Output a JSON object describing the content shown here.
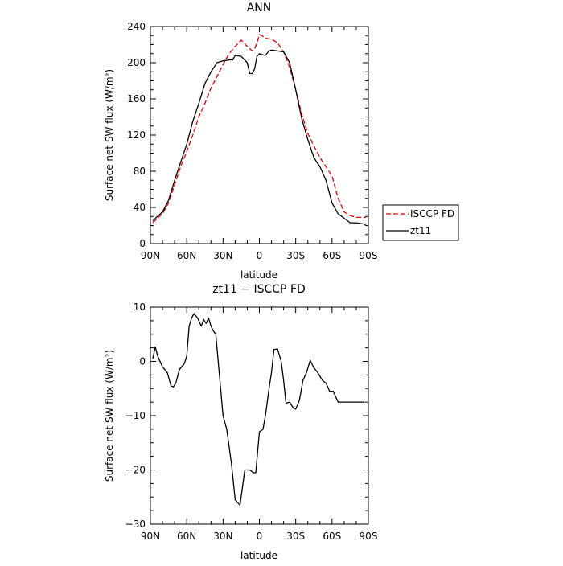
{
  "chart_data": [
    {
      "type": "line",
      "title": "ANN",
      "xlabel": "latitude",
      "ylabel": "Surface net SW flux (W/m²)",
      "xlim": [
        90,
        -90
      ],
      "ylim": [
        0,
        240
      ],
      "x_ticks": [
        90,
        60,
        30,
        0,
        -30,
        -60,
        -90
      ],
      "x_tick_labels": [
        "90N",
        "60N",
        "30N",
        "0",
        "30S",
        "60S",
        "90S"
      ],
      "y_ticks": [
        0,
        40,
        80,
        120,
        160,
        200,
        240
      ],
      "y_tick_labels": [
        "0",
        "40",
        "80",
        "120",
        "160",
        "200",
        "240"
      ],
      "legend_position": "right",
      "series": [
        {
          "name": "ISCCP FD",
          "color": "#e00000",
          "dash": "dashed",
          "x": [
            88,
            85,
            80,
            75,
            70,
            65,
            60,
            55,
            50,
            45,
            40,
            35,
            30,
            25,
            20,
            15,
            10,
            6,
            4,
            2,
            0,
            -2,
            -5,
            -10,
            -15,
            -20,
            -25,
            -30,
            -35,
            -40,
            -45,
            -50,
            -55,
            -60,
            -65,
            -70,
            -75,
            -80,
            -85,
            -88
          ],
          "y": [
            23,
            27,
            33,
            45,
            65,
            85,
            102,
            120,
            140,
            155,
            172,
            185,
            198,
            210,
            218,
            225,
            218,
            213,
            215,
            222,
            231,
            230,
            227,
            226,
            222,
            212,
            195,
            170,
            143,
            122,
            108,
            95,
            85,
            75,
            50,
            35,
            31,
            29,
            29,
            29
          ]
        },
        {
          "name": "zt11",
          "color": "#000000",
          "dash": "solid",
          "x": [
            88,
            85,
            80,
            75,
            70,
            65,
            60,
            55,
            50,
            45,
            40,
            35,
            30,
            25,
            22,
            20,
            15,
            10,
            8,
            6,
            4,
            2,
            0,
            -2,
            -5,
            -8,
            -10,
            -15,
            -20,
            -25,
            -30,
            -35,
            -40,
            -45,
            -50,
            -55,
            -60,
            -65,
            -70,
            -75,
            -80,
            -85,
            -88
          ],
          "y": [
            25,
            29,
            35,
            48,
            70,
            90,
            110,
            135,
            155,
            177,
            190,
            200,
            202,
            203,
            203,
            208,
            207,
            200,
            188,
            188,
            193,
            207,
            210,
            209,
            208,
            213,
            214,
            213,
            212,
            200,
            170,
            138,
            115,
            95,
            85,
            70,
            45,
            33,
            28,
            23,
            23,
            22,
            21
          ]
        }
      ]
    },
    {
      "type": "line",
      "title": "zt11 − ISCCP FD",
      "xlabel": "latitude",
      "ylabel": "Surface net SW flux (W/m²)",
      "xlim": [
        90,
        -90
      ],
      "ylim": [
        -30,
        10
      ],
      "x_ticks": [
        90,
        60,
        30,
        0,
        -30,
        -60,
        -90
      ],
      "x_tick_labels": [
        "90N",
        "60N",
        "30N",
        "0",
        "30S",
        "60S",
        "90S"
      ],
      "y_ticks": [
        -30,
        -20,
        -10,
        0,
        10
      ],
      "y_tick_labels": [
        "−30",
        "−20",
        "−10",
        "0",
        "10"
      ],
      "series": [
        {
          "name": "",
          "color": "#000000",
          "dash": "solid",
          "x": [
            88,
            86,
            84,
            80,
            76,
            73,
            71,
            69,
            66,
            62,
            60,
            58,
            56,
            54,
            51,
            48,
            46,
            44,
            42,
            40,
            38,
            36,
            34,
            32,
            30,
            27,
            23,
            20,
            16,
            12,
            8,
            5,
            3,
            2,
            0,
            -3,
            -5,
            -8,
            -10,
            -12,
            -15,
            -18,
            -20,
            -22,
            -25,
            -28,
            -30,
            -33,
            -36,
            -39,
            -42,
            -45,
            -48,
            -52,
            -55,
            -58,
            -61,
            -65,
            -69,
            -72,
            -76,
            -80,
            -84,
            -87
          ],
          "y": [
            0.5,
            2.7,
            1,
            -1,
            -2.1,
            -4.5,
            -4.7,
            -4,
            -1.5,
            -0.4,
            1,
            6.5,
            8,
            8.8,
            8,
            6.5,
            7.7,
            7,
            8,
            6.5,
            5.6,
            5,
            0,
            -5,
            -10,
            -12.5,
            -19,
            -25.5,
            -26.5,
            -20,
            -20,
            -20.5,
            -20.5,
            -18,
            -13,
            -12.5,
            -10,
            -5,
            -2,
            2.2,
            2.3,
            0,
            -3.5,
            -7.7,
            -7.5,
            -8.6,
            -8.8,
            -7.2,
            -3.5,
            -2,
            0.2,
            -1.2,
            -2,
            -3.5,
            -4,
            -5.5,
            -5.5,
            -7.5,
            -7.5,
            -7.5,
            -7.5,
            -7.5,
            -7.5,
            -7.5
          ]
        }
      ]
    }
  ]
}
